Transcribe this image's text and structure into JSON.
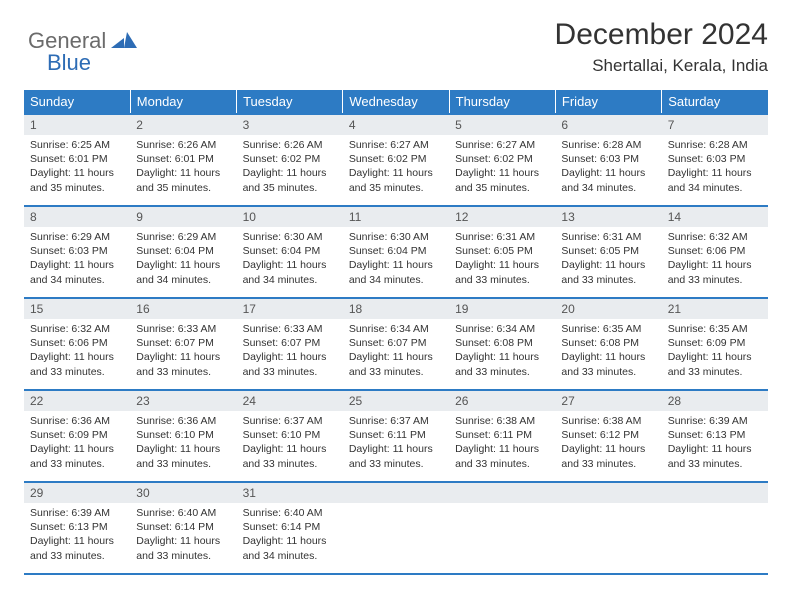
{
  "logo": {
    "general": "General",
    "blue": "Blue"
  },
  "header": {
    "month_title": "December 2024",
    "location": "Shertallai, Kerala, India"
  },
  "colors": {
    "header_bg": "#2d7bc4",
    "header_text": "#ffffff",
    "daynum_bg": "#e9ecef",
    "border": "#2d7bc4",
    "logo_general": "#6b6b6b",
    "logo_blue": "#2d6cb5"
  },
  "weekdays": [
    "Sunday",
    "Monday",
    "Tuesday",
    "Wednesday",
    "Thursday",
    "Friday",
    "Saturday"
  ],
  "weeks": [
    [
      {
        "day": "1",
        "sunrise": "Sunrise: 6:25 AM",
        "sunset": "Sunset: 6:01 PM",
        "daylight": "Daylight: 11 hours and 35 minutes."
      },
      {
        "day": "2",
        "sunrise": "Sunrise: 6:26 AM",
        "sunset": "Sunset: 6:01 PM",
        "daylight": "Daylight: 11 hours and 35 minutes."
      },
      {
        "day": "3",
        "sunrise": "Sunrise: 6:26 AM",
        "sunset": "Sunset: 6:02 PM",
        "daylight": "Daylight: 11 hours and 35 minutes."
      },
      {
        "day": "4",
        "sunrise": "Sunrise: 6:27 AM",
        "sunset": "Sunset: 6:02 PM",
        "daylight": "Daylight: 11 hours and 35 minutes."
      },
      {
        "day": "5",
        "sunrise": "Sunrise: 6:27 AM",
        "sunset": "Sunset: 6:02 PM",
        "daylight": "Daylight: 11 hours and 35 minutes."
      },
      {
        "day": "6",
        "sunrise": "Sunrise: 6:28 AM",
        "sunset": "Sunset: 6:03 PM",
        "daylight": "Daylight: 11 hours and 34 minutes."
      },
      {
        "day": "7",
        "sunrise": "Sunrise: 6:28 AM",
        "sunset": "Sunset: 6:03 PM",
        "daylight": "Daylight: 11 hours and 34 minutes."
      }
    ],
    [
      {
        "day": "8",
        "sunrise": "Sunrise: 6:29 AM",
        "sunset": "Sunset: 6:03 PM",
        "daylight": "Daylight: 11 hours and 34 minutes."
      },
      {
        "day": "9",
        "sunrise": "Sunrise: 6:29 AM",
        "sunset": "Sunset: 6:04 PM",
        "daylight": "Daylight: 11 hours and 34 minutes."
      },
      {
        "day": "10",
        "sunrise": "Sunrise: 6:30 AM",
        "sunset": "Sunset: 6:04 PM",
        "daylight": "Daylight: 11 hours and 34 minutes."
      },
      {
        "day": "11",
        "sunrise": "Sunrise: 6:30 AM",
        "sunset": "Sunset: 6:04 PM",
        "daylight": "Daylight: 11 hours and 34 minutes."
      },
      {
        "day": "12",
        "sunrise": "Sunrise: 6:31 AM",
        "sunset": "Sunset: 6:05 PM",
        "daylight": "Daylight: 11 hours and 33 minutes."
      },
      {
        "day": "13",
        "sunrise": "Sunrise: 6:31 AM",
        "sunset": "Sunset: 6:05 PM",
        "daylight": "Daylight: 11 hours and 33 minutes."
      },
      {
        "day": "14",
        "sunrise": "Sunrise: 6:32 AM",
        "sunset": "Sunset: 6:06 PM",
        "daylight": "Daylight: 11 hours and 33 minutes."
      }
    ],
    [
      {
        "day": "15",
        "sunrise": "Sunrise: 6:32 AM",
        "sunset": "Sunset: 6:06 PM",
        "daylight": "Daylight: 11 hours and 33 minutes."
      },
      {
        "day": "16",
        "sunrise": "Sunrise: 6:33 AM",
        "sunset": "Sunset: 6:07 PM",
        "daylight": "Daylight: 11 hours and 33 minutes."
      },
      {
        "day": "17",
        "sunrise": "Sunrise: 6:33 AM",
        "sunset": "Sunset: 6:07 PM",
        "daylight": "Daylight: 11 hours and 33 minutes."
      },
      {
        "day": "18",
        "sunrise": "Sunrise: 6:34 AM",
        "sunset": "Sunset: 6:07 PM",
        "daylight": "Daylight: 11 hours and 33 minutes."
      },
      {
        "day": "19",
        "sunrise": "Sunrise: 6:34 AM",
        "sunset": "Sunset: 6:08 PM",
        "daylight": "Daylight: 11 hours and 33 minutes."
      },
      {
        "day": "20",
        "sunrise": "Sunrise: 6:35 AM",
        "sunset": "Sunset: 6:08 PM",
        "daylight": "Daylight: 11 hours and 33 minutes."
      },
      {
        "day": "21",
        "sunrise": "Sunrise: 6:35 AM",
        "sunset": "Sunset: 6:09 PM",
        "daylight": "Daylight: 11 hours and 33 minutes."
      }
    ],
    [
      {
        "day": "22",
        "sunrise": "Sunrise: 6:36 AM",
        "sunset": "Sunset: 6:09 PM",
        "daylight": "Daylight: 11 hours and 33 minutes."
      },
      {
        "day": "23",
        "sunrise": "Sunrise: 6:36 AM",
        "sunset": "Sunset: 6:10 PM",
        "daylight": "Daylight: 11 hours and 33 minutes."
      },
      {
        "day": "24",
        "sunrise": "Sunrise: 6:37 AM",
        "sunset": "Sunset: 6:10 PM",
        "daylight": "Daylight: 11 hours and 33 minutes."
      },
      {
        "day": "25",
        "sunrise": "Sunrise: 6:37 AM",
        "sunset": "Sunset: 6:11 PM",
        "daylight": "Daylight: 11 hours and 33 minutes."
      },
      {
        "day": "26",
        "sunrise": "Sunrise: 6:38 AM",
        "sunset": "Sunset: 6:11 PM",
        "daylight": "Daylight: 11 hours and 33 minutes."
      },
      {
        "day": "27",
        "sunrise": "Sunrise: 6:38 AM",
        "sunset": "Sunset: 6:12 PM",
        "daylight": "Daylight: 11 hours and 33 minutes."
      },
      {
        "day": "28",
        "sunrise": "Sunrise: 6:39 AM",
        "sunset": "Sunset: 6:13 PM",
        "daylight": "Daylight: 11 hours and 33 minutes."
      }
    ],
    [
      {
        "day": "29",
        "sunrise": "Sunrise: 6:39 AM",
        "sunset": "Sunset: 6:13 PM",
        "daylight": "Daylight: 11 hours and 33 minutes."
      },
      {
        "day": "30",
        "sunrise": "Sunrise: 6:40 AM",
        "sunset": "Sunset: 6:14 PM",
        "daylight": "Daylight: 11 hours and 33 minutes."
      },
      {
        "day": "31",
        "sunrise": "Sunrise: 6:40 AM",
        "sunset": "Sunset: 6:14 PM",
        "daylight": "Daylight: 11 hours and 34 minutes."
      },
      {
        "day": "",
        "sunrise": "",
        "sunset": "",
        "daylight": ""
      },
      {
        "day": "",
        "sunrise": "",
        "sunset": "",
        "daylight": ""
      },
      {
        "day": "",
        "sunrise": "",
        "sunset": "",
        "daylight": ""
      },
      {
        "day": "",
        "sunrise": "",
        "sunset": "",
        "daylight": ""
      }
    ]
  ]
}
